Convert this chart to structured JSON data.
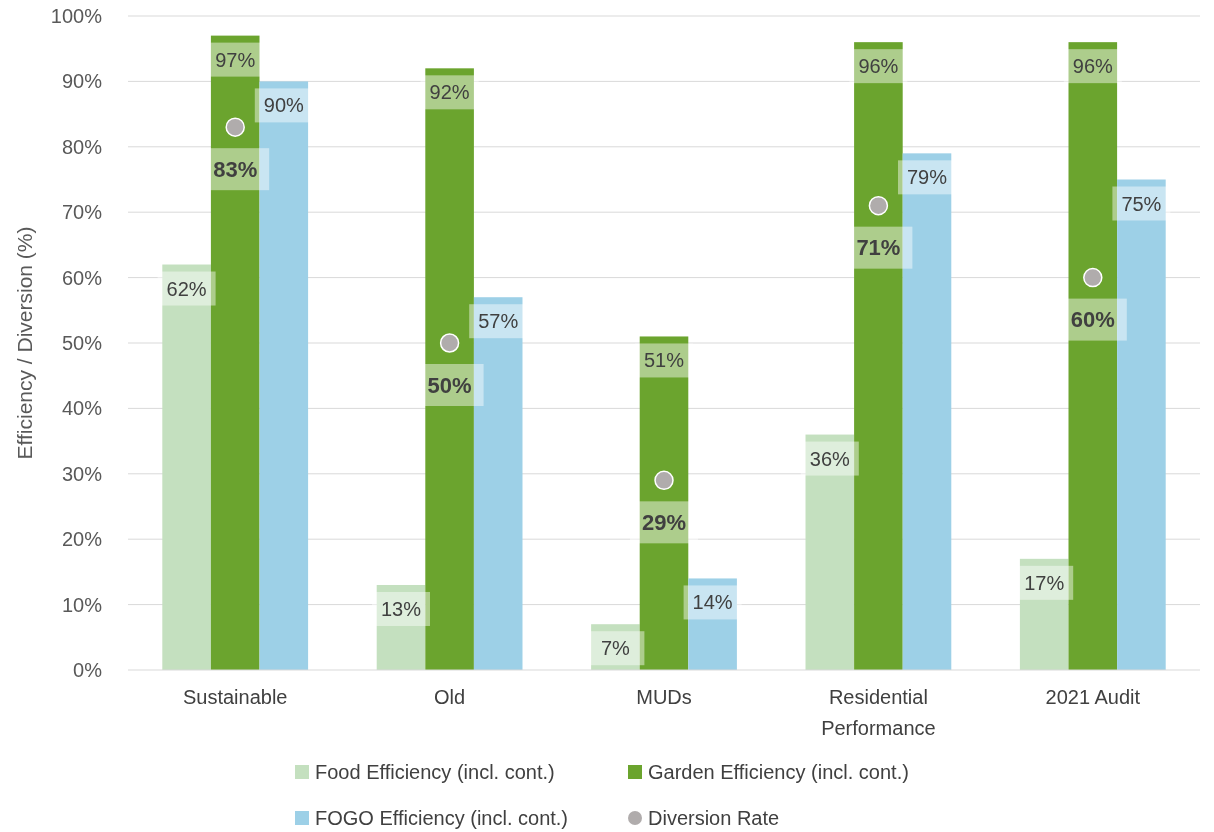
{
  "chart_data": {
    "type": "bar",
    "ylabel": "Efficiency / Diversion (%)",
    "categories": [
      "Sustainable",
      "Old",
      "MUDs",
      "Residential Performance",
      "2021 Audit"
    ],
    "series": [
      {
        "name": "Food Efficiency (incl. cont.)",
        "color": "#c4e0bf",
        "values": [
          62,
          13,
          7,
          36,
          17
        ],
        "value_labels": [
          "62%",
          "13%",
          "7%",
          "36%",
          "17%"
        ]
      },
      {
        "name": "Garden Efficiency (incl. cont.)",
        "color": "#6ba42e",
        "values": [
          97,
          92,
          51,
          96,
          96
        ],
        "value_labels": [
          "97%",
          "92%",
          "51%",
          "96%",
          "96%"
        ]
      },
      {
        "name": "FOGO Efficiency (incl. cont.)",
        "color": "#9dd0e7",
        "values": [
          90,
          57,
          14,
          79,
          75
        ],
        "value_labels": [
          "90%",
          "57%",
          "14%",
          "79%",
          "75%"
        ]
      },
      {
        "name": "Diversion Rate",
        "type": "scatter",
        "color": "#b0acac",
        "marker": "circle",
        "x": [
          "Sustainable",
          "Old",
          "MUDs",
          "Residential Performance",
          "2021 Audit"
        ],
        "values": [
          83,
          50,
          29,
          71,
          60
        ],
        "value_labels": [
          "83%",
          "50%",
          "29%",
          "71%",
          "60%"
        ]
      }
    ],
    "ylim": [
      0,
      100
    ],
    "yticks": [
      {
        "value": 0,
        "label": "0%"
      },
      {
        "value": 10,
        "label": "10%"
      },
      {
        "value": 20,
        "label": "20%"
      },
      {
        "value": 30,
        "label": "30%"
      },
      {
        "value": 40,
        "label": "40%"
      },
      {
        "value": 50,
        "label": "50%"
      },
      {
        "value": 60,
        "label": "60%"
      },
      {
        "value": 70,
        "label": "70%"
      },
      {
        "value": 80,
        "label": "80%"
      },
      {
        "value": 90,
        "label": "90%"
      },
      {
        "value": 100,
        "label": "100%"
      }
    ],
    "grid": "y",
    "legend": "bottom"
  }
}
